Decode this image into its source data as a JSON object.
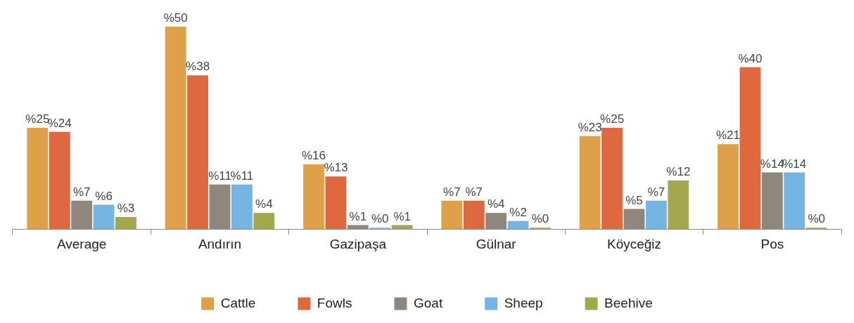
{
  "chart_data": {
    "type": "bar",
    "categories": [
      "Average",
      "Andırın",
      "Gazipaşa",
      "Gülnar",
      "Köyceğiz",
      "Pos"
    ],
    "series": [
      {
        "name": "Cattle",
        "color": "#dea14a",
        "values": [
          25,
          50,
          16,
          7,
          23,
          21
        ],
        "value_labels": [
          "%25",
          "%50",
          "%16",
          "%7",
          "%23",
          "%21"
        ]
      },
      {
        "name": "Fowls",
        "color": "#e0683e",
        "values": [
          24,
          38,
          13,
          7,
          25,
          40
        ],
        "value_labels": [
          "%24",
          "%38",
          "%13",
          "%7",
          "%25",
          "%40"
        ]
      },
      {
        "name": "Goat",
        "color": "#8f877d",
        "values": [
          7,
          11,
          1,
          4,
          5,
          14
        ],
        "value_labels": [
          "%7",
          "%11",
          "%1",
          "%4",
          "%5",
          "%14"
        ]
      },
      {
        "name": "Sheep",
        "color": "#76b5e3",
        "values": [
          6,
          11,
          0,
          2,
          7,
          14
        ],
        "value_labels": [
          "%6",
          "%11",
          "%0",
          "%2",
          "%7",
          "%14"
        ]
      },
      {
        "name": "Beehive",
        "color": "#a3a84f",
        "values": [
          3,
          4,
          1,
          0,
          12,
          0
        ],
        "value_labels": [
          "%3",
          "%4",
          "%1",
          "%0",
          "%12",
          "%0"
        ]
      }
    ],
    "legend": "bottom",
    "tick_labels": "x"
  }
}
